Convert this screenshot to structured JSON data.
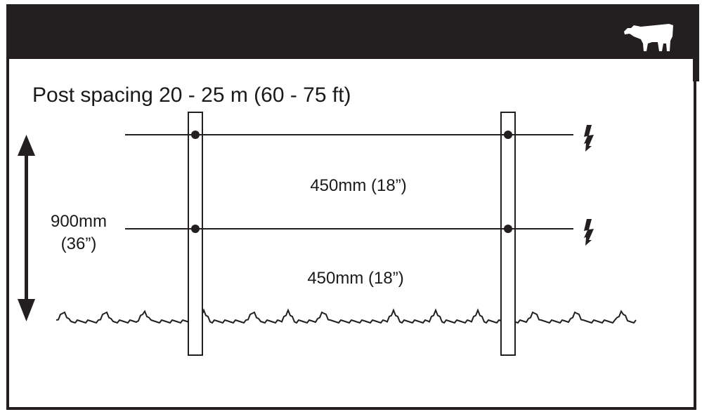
{
  "header": {
    "icon": "cow-icon",
    "background": "#231f20"
  },
  "title": "Post spacing 20 - 25 m (60 - 75 ft)",
  "total_height": {
    "line1": "900mm",
    "line2": "(36”)"
  },
  "upper_gap": "450mm (18”)",
  "lower_gap": "450mm (18”)",
  "wires": [
    {
      "icon": "lightning-icon",
      "electrified": true
    },
    {
      "icon": "lightning-icon",
      "electrified": true
    }
  ]
}
